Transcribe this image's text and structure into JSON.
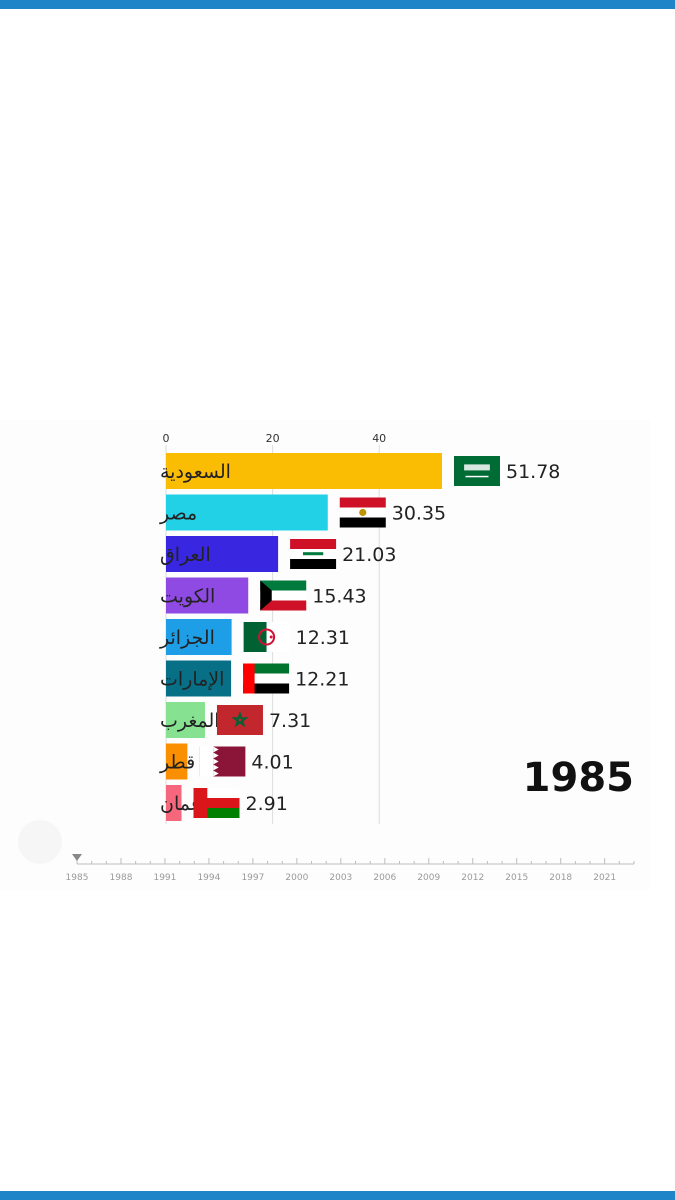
{
  "chart_data": {
    "type": "bar",
    "orientation": "horizontal",
    "year": "1985",
    "categories": [
      "السعودية",
      "مصر",
      "العراق",
      "الكويت",
      "الجزائر",
      "الإمارات",
      "المغرب",
      "قطر",
      "عمان"
    ],
    "values": [
      51.78,
      30.35,
      21.03,
      15.43,
      12.31,
      12.21,
      7.31,
      4.01,
      2.91
    ],
    "value_labels": [
      "51.78",
      "30.35",
      "21.03",
      "15.43",
      "12.31",
      "12.21",
      "7.31",
      "4.01",
      "2.91"
    ],
    "colors": [
      "#fbbc04",
      "#22d1e6",
      "#3826e0",
      "#8e4ae3",
      "#1f9ee8",
      "#076f86",
      "#86e290",
      "#fa9001",
      "#f6667d"
    ],
    "flags": [
      "saudi-arabia",
      "egypt",
      "iraq",
      "kuwait",
      "algeria",
      "uae",
      "morocco",
      "qatar",
      "oman"
    ],
    "x_ticks": [
      "0",
      "20",
      "40"
    ],
    "x_tick_values": [
      0,
      20,
      40
    ],
    "xlim": [
      0,
      60
    ],
    "grid": true,
    "timeline": {
      "years": [
        "1985",
        "1988",
        "1991",
        "1994",
        "1997",
        "2000",
        "2003",
        "2006",
        "2009",
        "2012",
        "2015",
        "2018",
        "2021"
      ],
      "current": "1985"
    }
  }
}
